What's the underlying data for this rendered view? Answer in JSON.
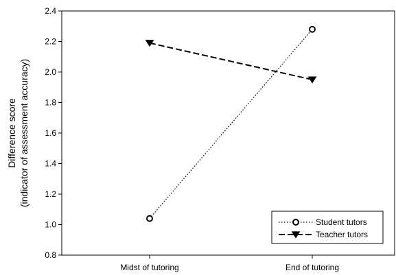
{
  "chart_data": {
    "type": "line",
    "categories": [
      "Midst of tutoring",
      "End of tutoring"
    ],
    "ylabel_line1": "Difference score",
    "ylabel_line2": "(indicator of assessment accuracy)",
    "ylim": [
      0.8,
      2.4
    ],
    "yticks": [
      0.8,
      1.0,
      1.2,
      1.4,
      1.6,
      1.8,
      2.0,
      2.2,
      2.4
    ],
    "ytick_labels": [
      "0.8",
      "1.0",
      "1.2",
      "1.4",
      "1.6",
      "1.8",
      "2.0",
      "2.2",
      "2.4"
    ],
    "grid": false,
    "legend_placement": "bottom-right",
    "series": [
      {
        "name": "Student tutors",
        "values": [
          1.04,
          2.28
        ],
        "line_style": "dotted",
        "marker": "open-circle",
        "color": "#000000"
      },
      {
        "name": "Teacher tutors",
        "values": [
          2.19,
          1.95
        ],
        "line_style": "dashed",
        "marker": "filled-down-triangle",
        "color": "#000000"
      }
    ]
  }
}
